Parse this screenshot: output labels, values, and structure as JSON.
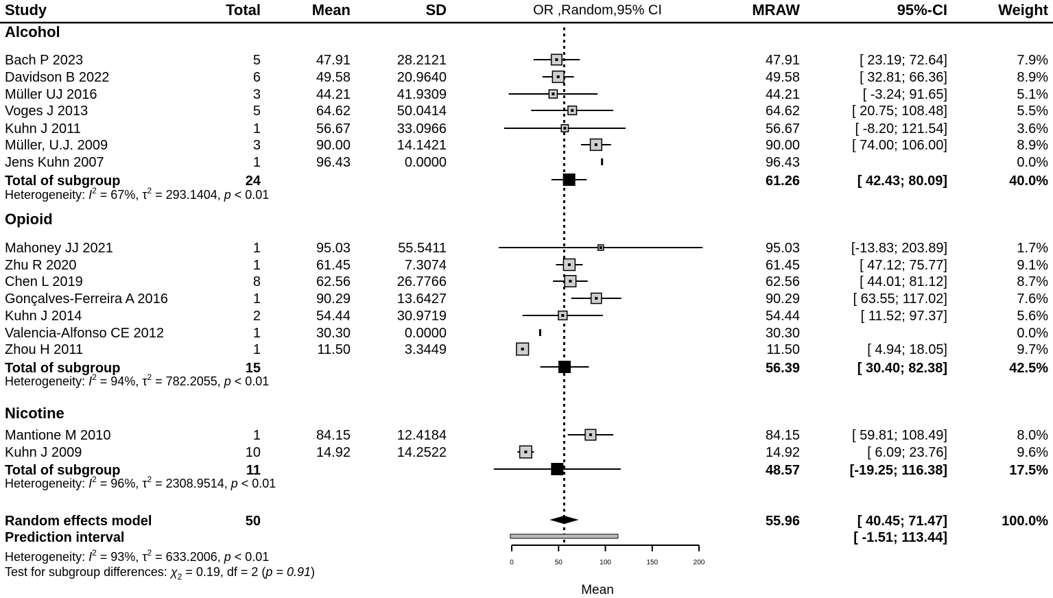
{
  "chart_data": {
    "type": "forest",
    "headers": {
      "study": "Study",
      "total": "Total",
      "mean": "Mean",
      "sd": "SD",
      "plot": "OR ,Random,95% CI",
      "mraw": "MRAW",
      "ci": "95%-CI",
      "weight": "Weight"
    },
    "xlabel": "Mean",
    "xlim": [
      0,
      200
    ],
    "xticks": [
      "0",
      "50",
      "100",
      "150",
      "200"
    ],
    "reference_line": 56.0,
    "subgroups": [
      {
        "name": "Alcohol",
        "studies": [
          {
            "study": "Bach P 2023",
            "total": "5",
            "mean": "47.91",
            "sd": "28.2121",
            "mraw": "47.91",
            "ci": "[ 23.19;  72.64]",
            "weight": "7.9%",
            "est": 47.91,
            "lo": 23.19,
            "hi": 72.64
          },
          {
            "study": "Davidson B 2022",
            "total": "6",
            "mean": "49.58",
            "sd": "20.9640",
            "mraw": "49.58",
            "ci": "[ 32.81;  66.36]",
            "weight": "8.9%",
            "est": 49.58,
            "lo": 32.81,
            "hi": 66.36
          },
          {
            "study": "Müller UJ 2016",
            "total": "3",
            "mean": "44.21",
            "sd": "41.9309",
            "mraw": "44.21",
            "ci": "[ -3.24;  91.65]",
            "weight": "5.1%",
            "est": 44.21,
            "lo": -3.24,
            "hi": 91.65
          },
          {
            "study": "Voges J 2013",
            "total": "5",
            "mean": "64.62",
            "sd": "50.0414",
            "mraw": "64.62",
            "ci": "[ 20.75; 108.48]",
            "weight": "5.5%",
            "est": 64.62,
            "lo": 20.75,
            "hi": 108.48
          },
          {
            "study": "Kuhn J 2011",
            "total": "1",
            "mean": "56.67",
            "sd": "33.0966",
            "mraw": "56.67",
            "ci": "[ -8.20; 121.54]",
            "weight": "3.6%",
            "est": 56.67,
            "lo": -8.2,
            "hi": 121.54
          },
          {
            "study": "Müller, U.J. 2009",
            "total": "3",
            "mean": "90.00",
            "sd": "14.1421",
            "mraw": "90.00",
            "ci": "[ 74.00; 106.00]",
            "weight": "8.9%",
            "est": 90.0,
            "lo": 74.0,
            "hi": 106.0
          },
          {
            "study": "Jens Kuhn 2007",
            "total": "1",
            "mean": "96.43",
            "sd": "0.0000",
            "mraw": "96.43",
            "ci": "",
            "weight": "0.0%",
            "est": 96.43,
            "lo": 96.43,
            "hi": 96.43
          }
        ],
        "total_label": "Total of subgroup",
        "total": "24",
        "pooled": {
          "mraw": "61.26",
          "ci": "[ 42.43;  80.09]",
          "weight": "40.0%",
          "est": 61.26,
          "lo": 42.43,
          "hi": 80.09
        },
        "heterogeneity": {
          "prefix": "Heterogeneity: ",
          "i2": "= 67%, ",
          "tau2": "= 293.1404, ",
          "p": "< 0.01"
        }
      },
      {
        "name": "Opioid",
        "studies": [
          {
            "study": "Mahoney JJ 2021",
            "total": "1",
            "mean": "95.03",
            "sd": "55.5411",
            "mraw": "95.03",
            "ci": "[-13.83; 203.89]",
            "weight": "1.7%",
            "est": 95.03,
            "lo": -13.83,
            "hi": 203.89
          },
          {
            "study": "Zhu R  2020",
            "total": "1",
            "mean": "61.45",
            "sd": "7.3074",
            "mraw": "61.45",
            "ci": "[ 47.12;  75.77]",
            "weight": "9.1%",
            "est": 61.45,
            "lo": 47.12,
            "hi": 75.77
          },
          {
            "study": "Chen L 2019",
            "total": "8",
            "mean": "62.56",
            "sd": "26.7766",
            "mraw": "62.56",
            "ci": "[ 44.01;  81.12]",
            "weight": "8.7%",
            "est": 62.56,
            "lo": 44.01,
            "hi": 81.12
          },
          {
            "study": "Gonçalves-Ferreira A 2016",
            "total": "1",
            "mean": "90.29",
            "sd": "13.6427",
            "mraw": "90.29",
            "ci": "[ 63.55; 117.02]",
            "weight": "7.6%",
            "est": 90.29,
            "lo": 63.55,
            "hi": 117.02
          },
          {
            "study": "Kuhn J 2014",
            "total": "2",
            "mean": "54.44",
            "sd": "30.9719",
            "mraw": "54.44",
            "ci": "[ 11.52;  97.37]",
            "weight": "5.6%",
            "est": 54.44,
            "lo": 11.52,
            "hi": 97.37
          },
          {
            "study": "Valencia-Alfonso CE 2012",
            "total": "1",
            "mean": "30.30",
            "sd": "0.0000",
            "mraw": "30.30",
            "ci": "",
            "weight": "0.0%",
            "est": 30.3,
            "lo": 30.3,
            "hi": 30.3
          },
          {
            "study": "Zhou H  2011",
            "total": "1",
            "mean": "11.50",
            "sd": "3.3449",
            "mraw": "11.50",
            "ci": "[  4.94;  18.05]",
            "weight": "9.7%",
            "est": 11.5,
            "lo": 4.94,
            "hi": 18.05
          }
        ],
        "total_label": "Total of subgroup",
        "total": "15",
        "pooled": {
          "mraw": "56.39",
          "ci": "[ 30.40;  82.38]",
          "weight": "42.5%",
          "est": 56.39,
          "lo": 30.4,
          "hi": 82.38
        },
        "heterogeneity": {
          "prefix": "Heterogeneity: ",
          "i2": "= 94%, ",
          "tau2": "= 782.2055, ",
          "p": "< 0.01"
        }
      },
      {
        "name": "Nicotine",
        "studies": [
          {
            "study": "Mantione M 2010",
            "total": "1",
            "mean": "84.15",
            "sd": "12.4184",
            "mraw": "84.15",
            "ci": "[ 59.81; 108.49]",
            "weight": "8.0%",
            "est": 84.15,
            "lo": 59.81,
            "hi": 108.49
          },
          {
            "study": "Kuhn J 2009",
            "total": "10",
            "mean": "14.92",
            "sd": "14.2522",
            "mraw": "14.92",
            "ci": "[  6.09;  23.76]",
            "weight": "9.6%",
            "est": 14.92,
            "lo": 6.09,
            "hi": 23.76
          }
        ],
        "total_label": "Total of subgroup",
        "total": "11",
        "pooled": {
          "mraw": "48.57",
          "ci": "[-19.25; 116.38]",
          "weight": "17.5%",
          "est": 48.57,
          "lo": -19.25,
          "hi": 116.38
        },
        "heterogeneity": {
          "prefix": "Heterogeneity: ",
          "i2": "= 96%, ",
          "tau2": "= 2308.9514, ",
          "p": "< 0.01"
        }
      }
    ],
    "overall": {
      "label": "Random effects model",
      "total": "50",
      "mraw": "55.96",
      "ci": "[ 40.45;  71.47]",
      "weight": "100.0%",
      "est": 55.96,
      "lo": 40.45,
      "hi": 71.47
    },
    "prediction": {
      "label": "Prediction interval",
      "ci": "[ -1.51; 113.44]",
      "lo": -1.51,
      "hi": 113.44
    },
    "overall_heterogeneity": {
      "prefix": "Heterogeneity: ",
      "i2": "= 93%, ",
      "tau2": "= 633.2006, ",
      "p": "< 0.01"
    },
    "subgroup_test": {
      "prefix": "Test for subgroup differences: ",
      "chi": "χ",
      "sub": "2",
      "value": " = 0.19, df = 2 (",
      "p": "p = 0.91",
      "close": ")"
    }
  }
}
